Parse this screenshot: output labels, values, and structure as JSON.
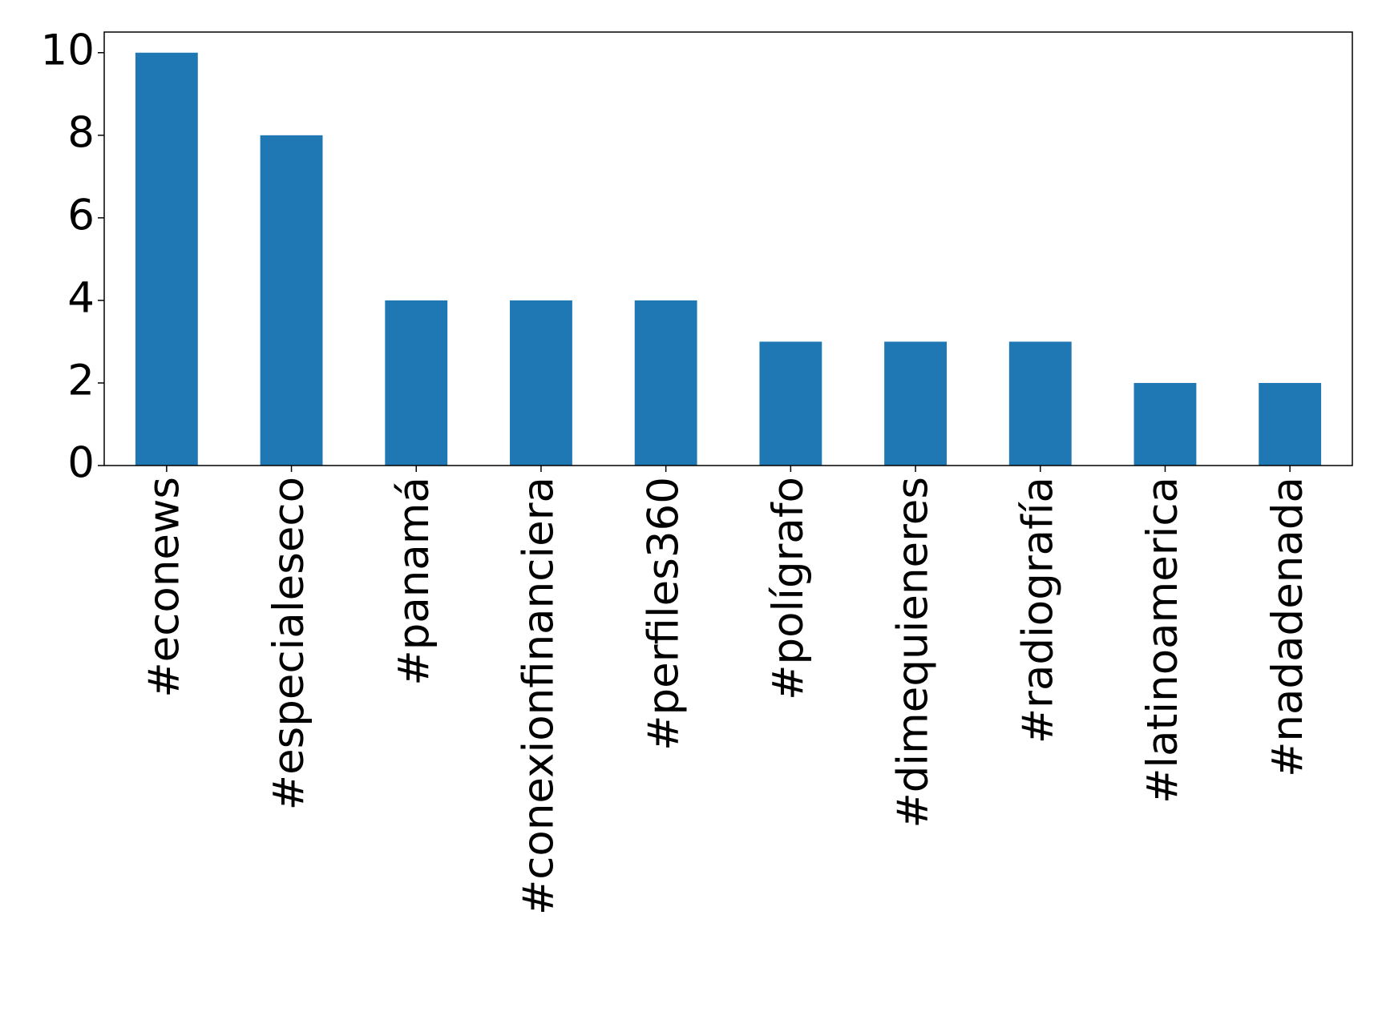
{
  "chart_data": {
    "type": "bar",
    "categories": [
      "#econews",
      "#especialeseco",
      "#panamá",
      "#conexionfinanciera",
      "#perfiles360",
      "#polígrafo",
      "#dimequieneres",
      "#radiografía",
      "#latinoamerica",
      "#nadadenada"
    ],
    "values": [
      10,
      8,
      4,
      4,
      4,
      3,
      3,
      3,
      2,
      2
    ],
    "color": "#1f77b4",
    "ylim": [
      0,
      10.5
    ],
    "yticks": [
      0,
      2,
      4,
      6,
      8,
      10
    ],
    "grid": false
  }
}
